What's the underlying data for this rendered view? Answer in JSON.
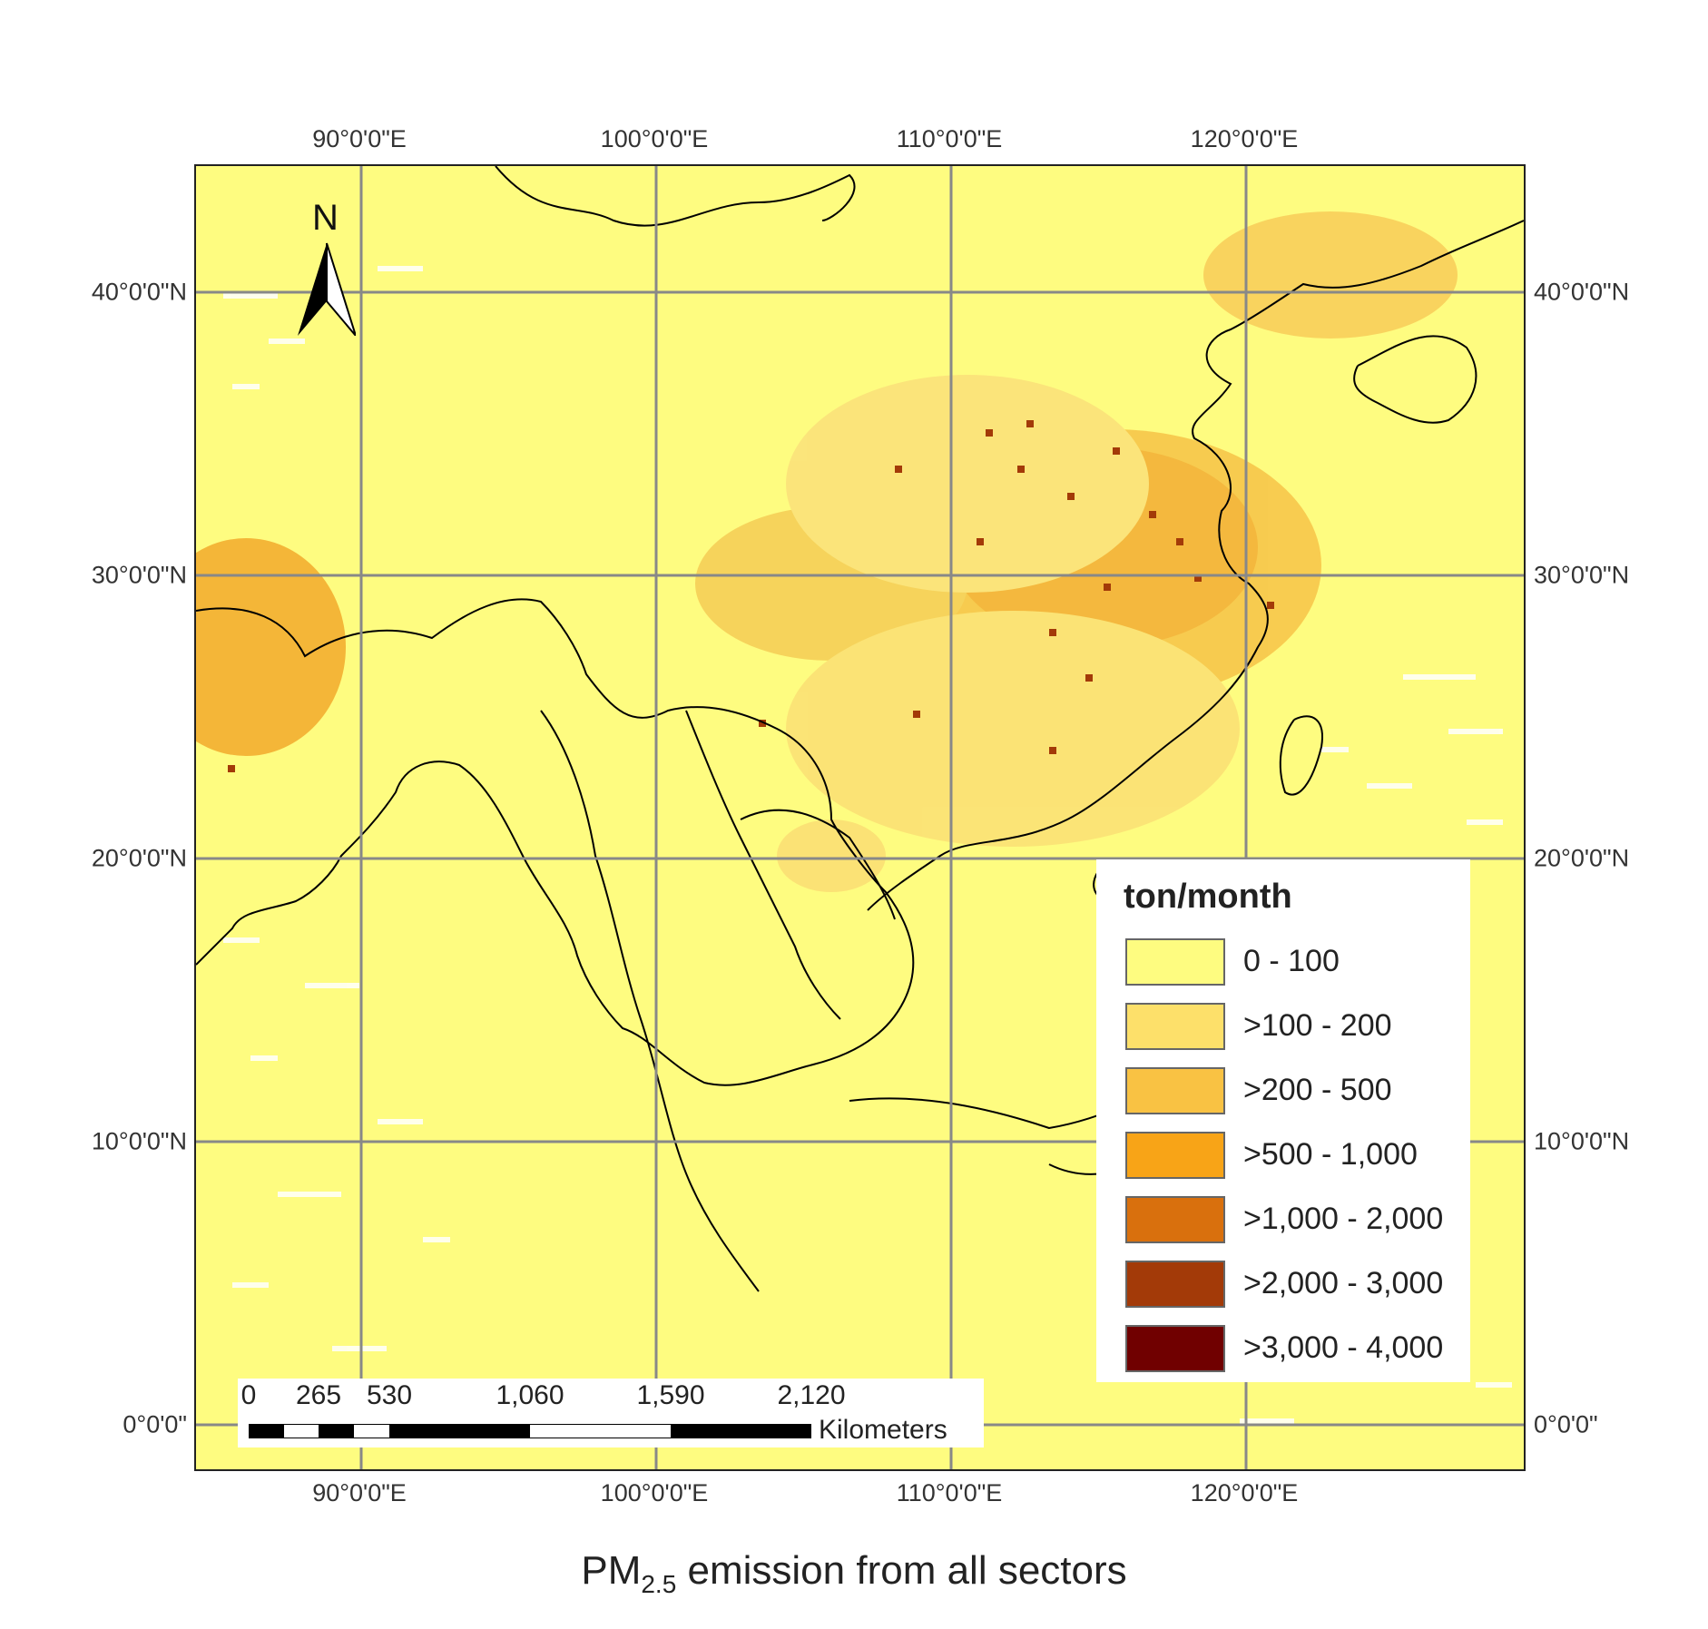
{
  "map": {
    "lon_ticks": [
      "90°0'0\"E",
      "100°0'0\"E",
      "110°0'0\"E",
      "120°0'0\"E"
    ],
    "lat_ticks": [
      "40°0'0\"N",
      "30°0'0\"N",
      "20°0'0\"N",
      "10°0'0\"N",
      "0°0'0\""
    ]
  },
  "north_arrow": {
    "label": "N"
  },
  "legend": {
    "title": "ton/month",
    "classes": [
      {
        "label": "0 - 100",
        "color": "#fefc80"
      },
      {
        "label": ">100 - 200",
        "color": "#fde06a"
      },
      {
        "label": ">200 - 500",
        "color": "#f9c243"
      },
      {
        "label": ">500 - 1,000",
        "color": "#f8a417"
      },
      {
        "label": ">1,000 - 2,000",
        "color": "#d9700d"
      },
      {
        "label": ">2,000 - 3,000",
        "color": "#a33a08"
      },
      {
        "label": ">3,000 - 4,000",
        "color": "#700000"
      }
    ]
  },
  "scale_bar": {
    "ticks": [
      "0",
      "265",
      "530",
      "1,060",
      "1,590",
      "2,120"
    ],
    "unit": "Kilometers"
  },
  "caption": {
    "prefix": "PM",
    "subscript": "2.5",
    "suffix": " emission from all sectors"
  }
}
